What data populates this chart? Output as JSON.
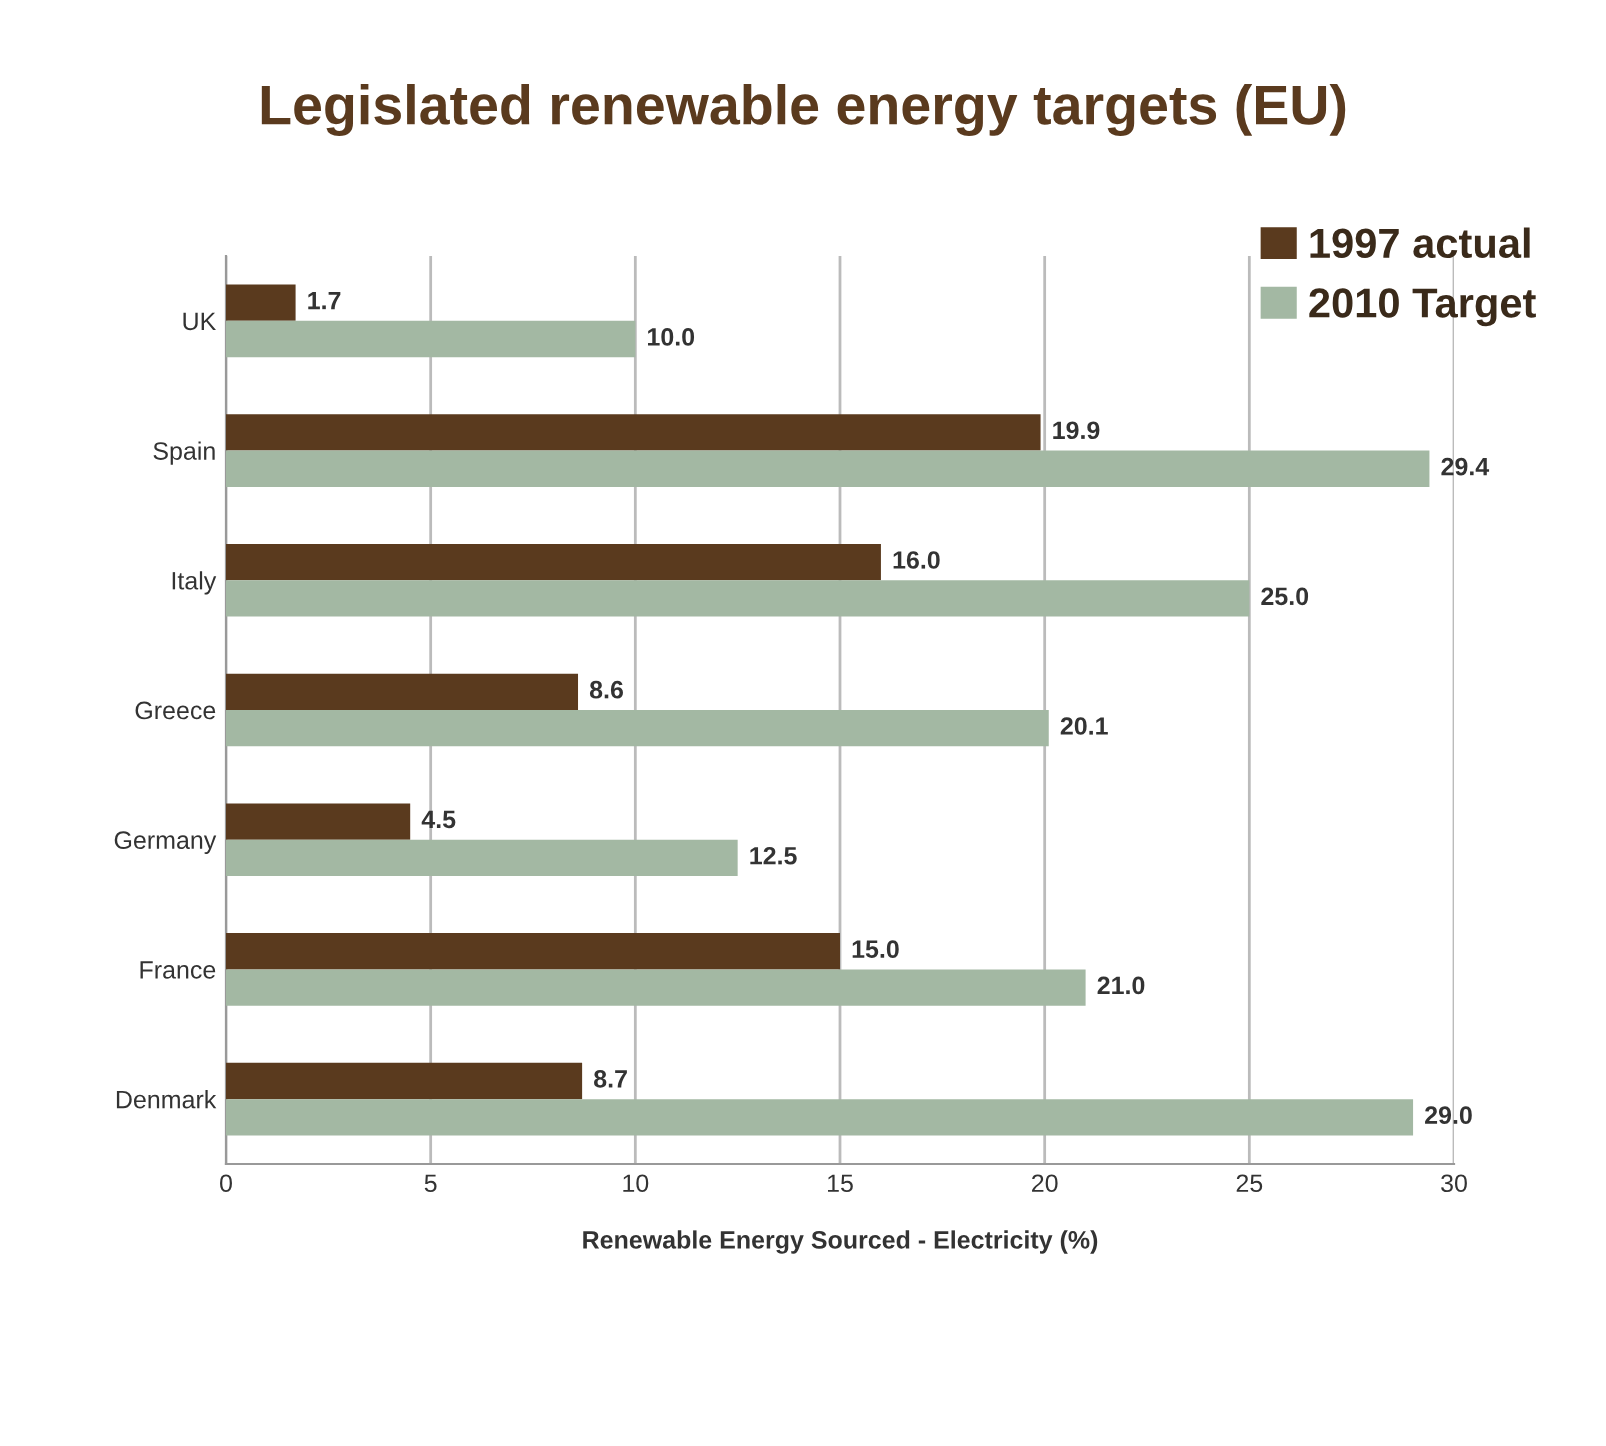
{
  "chart_data": {
    "type": "bar",
    "orientation": "horizontal",
    "title": "Legislated renewable energy targets (EU)",
    "xlabel": "Renewable Energy Sourced - Electricity (%)",
    "categories": [
      "UK",
      "Spain",
      "Italy",
      "Greece",
      "Germany",
      "France",
      "Denmark"
    ],
    "series": [
      {
        "name": "1997 actual",
        "color": "#5a3a1e",
        "values": [
          1.7,
          19.9,
          16.0,
          8.6,
          4.5,
          15.0,
          8.7
        ],
        "value_labels": [
          "1.7",
          "19.9",
          "16.0",
          "8.6",
          "4.5",
          "15.0",
          "8.7"
        ]
      },
      {
        "name": "2010 Target",
        "color": "#a3b8a3",
        "values": [
          10.0,
          29.4,
          25.0,
          20.1,
          12.5,
          21.0,
          29.0
        ],
        "value_labels": [
          "10.0",
          "29.4",
          "25.0",
          "20.1",
          "12.5",
          "21.0",
          "29.0"
        ]
      }
    ],
    "xlim": [
      0,
      30
    ],
    "xticks": [
      0,
      5,
      10,
      15,
      20,
      25,
      30
    ],
    "grid": "x",
    "legend": "top right"
  }
}
